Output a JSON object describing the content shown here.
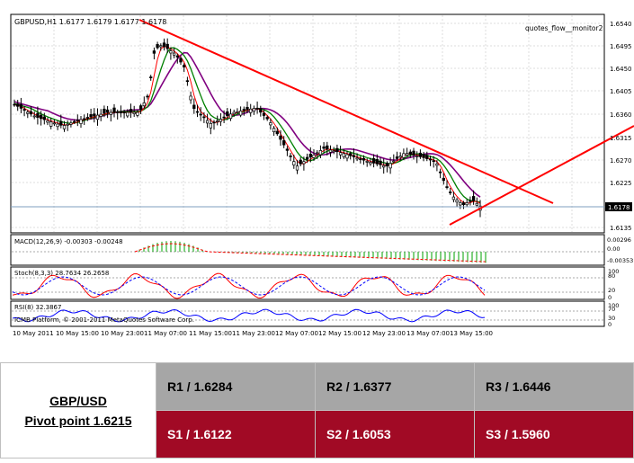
{
  "chart": {
    "title": "GBPUSD,H1  1.6177 1.6179 1.6177 1.6178",
    "indicator_name": "quotes_flow__monitor2",
    "current_price": "1.6178",
    "price_ticks": [
      "1.6540",
      "1.6495",
      "1.6450",
      "1.6405",
      "1.6360",
      "1.6315",
      "1.6270",
      "1.6225",
      "1.6135"
    ],
    "macd": {
      "label": "MACD(12,26,9) -0.00303 -0.00248",
      "ticks": [
        "0.00296",
        "0.00",
        "-0.00353"
      ]
    },
    "stoch": {
      "label": "Stoch(8,3,3) 28.7634 26.2658",
      "ticks": [
        "100",
        "80",
        "20",
        "0"
      ]
    },
    "rsi": {
      "label": "RSI(8) 32.3867",
      "ticks": [
        "100",
        "70",
        "30",
        "0"
      ]
    },
    "copyright": "ICMB Platform, © 2001-2011 MetaQuotes Software Corp.",
    "time_labels": [
      "10 May 2011",
      "10 May 15:00",
      "10 May 23:00",
      "11 May 07:00",
      "11 May 15:00",
      "11 May 23:00",
      "12 May 07:00",
      "12 May 15:00",
      "12 May 23:00",
      "13 May 07:00",
      "13 May 15:00"
    ],
    "colors": {
      "up_candle": "#ffffff",
      "down_candle": "#000000",
      "trendline": "#ff0000",
      "ma_fast": "#ff0000",
      "ma_mid": "#008000",
      "ma_slow": "#800080",
      "macd_hist": "#00a000",
      "macd_signal": "#ff0000",
      "stoch_main": "#ff0000",
      "stoch_signal": "#0000ff",
      "rsi": "#0000ff"
    }
  },
  "pivot": {
    "pair": "GBP/USD",
    "pivot_text": "Pivot point 1.6215",
    "resistance": [
      "R1 / 1.6284",
      "R2 / 1.6377",
      "R3 / 1.6446"
    ],
    "support": [
      "S1 / 1.6122",
      "S2 / 1.6053",
      "S3 / 1.5960"
    ],
    "colors": {
      "resistance_bg": "#a6a6a6",
      "support_bg": "#a10a25",
      "support_text": "#ffffff"
    }
  }
}
